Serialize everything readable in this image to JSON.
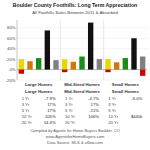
{
  "chart_data": {
    "type": "bar",
    "title": "Boulder County Foothills: Long Term Appreciation",
    "subtitle": "All Foothills Sales Between 2011 & Absorbed",
    "categories": [
      null,
      null,
      "Large Homes",
      null,
      null,
      null,
      null,
      "Mid-Sized Homes",
      null,
      null,
      null,
      null,
      "Small Homes",
      null,
      null
    ],
    "stacked": true,
    "grid": true,
    "series": [
      {
        "colors": [
          "#e8d800",
          "#d07800",
          "#1a8c1a",
          "#111111",
          "#808080",
          "#e8d800",
          "#d07800",
          "#1a8c1a",
          "#111111",
          "#808080",
          "#e8d800",
          "#d07800",
          "#1a8c1a",
          "#111111",
          "#808080"
        ],
        "values": [
          20,
          16,
          22,
          75,
          18,
          20,
          15,
          25,
          90,
          20,
          20,
          14,
          22,
          60,
          25
        ]
      },
      {
        "color": "#cc0000",
        "values": [
          -8,
          0,
          0,
          0,
          0,
          -5,
          0,
          0,
          0,
          0,
          -5,
          0,
          0,
          0,
          -12
        ]
      }
    ],
    "ylim": [
      -20,
      95
    ],
    "yticks": [
      {
        "value": -20,
        "label": "-20%"
      },
      {
        "value": 0,
        "label": "0%"
      },
      {
        "value": 20,
        "label": "20%"
      },
      {
        "value": 40,
        "label": "40%"
      },
      {
        "value": 60,
        "label": "60%"
      },
      {
        "value": 80,
        "label": "80%"
      }
    ],
    "table": {
      "columns": [
        "Large Homes",
        "Mid-Sized Homes",
        "Small Homes"
      ],
      "rows": [
        "1 Yr",
        "3 Yr",
        "5 Yr",
        "10 Yr",
        "20 Yr"
      ],
      "values": [
        [
          "-7.9%",
          "17%",
          "17%",
          "105%",
          "14.4%"
        ],
        [
          "-4.7%",
          "17%",
          "21%",
          "106%",
          null
        ],
        [
          "-5.0%",
          null,
          null,
          "$440k",
          null
        ]
      ]
    },
    "annotations": [
      "Compiled by Agents for Home Buyers Boulder, CO",
      "www.AgentsforHomeBuyers.com",
      "Data Source: MLS & zillow.com"
    ]
  }
}
